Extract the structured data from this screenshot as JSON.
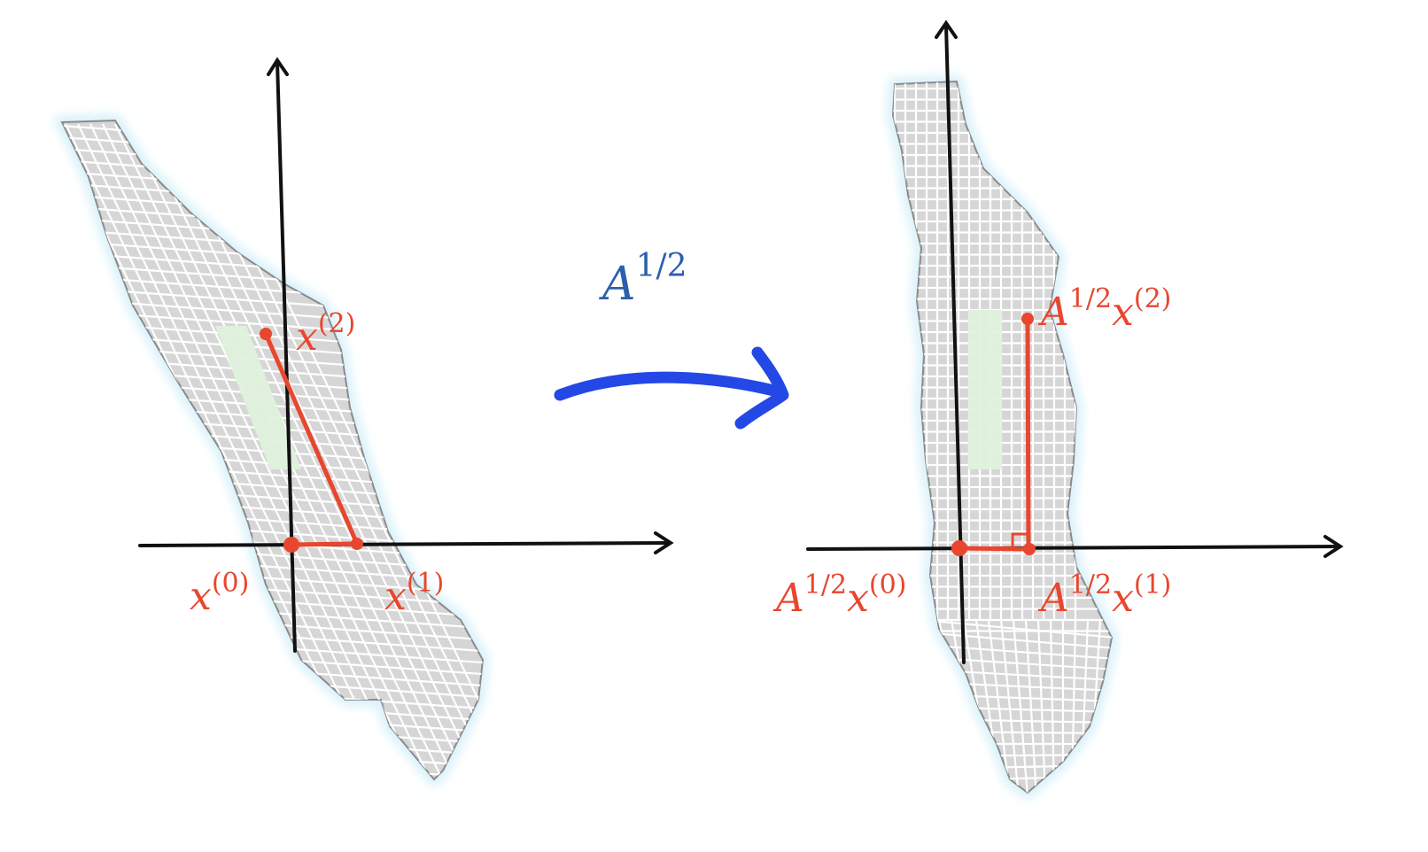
{
  "colors": {
    "path": "#e8462e",
    "arrow": "#2448e6",
    "transform_label": "#2a5fae",
    "land": "#d6d6d6",
    "land_outline": "#8a8a8a",
    "water_glow": "#cfeefa",
    "park": "#dff2dc",
    "axes": "#111111"
  },
  "transform": {
    "base": "A",
    "exponent": "1/2"
  },
  "left_panel": {
    "points": [
      {
        "base": "x",
        "index": "(0)"
      },
      {
        "base": "x",
        "index": "(1)"
      },
      {
        "base": "x",
        "index": "(2)"
      }
    ]
  },
  "right_panel": {
    "points": [
      {
        "prefix": "A",
        "prefix_exp": "1/2",
        "base": "x",
        "index": "(0)"
      },
      {
        "prefix": "A",
        "prefix_exp": "1/2",
        "base": "x",
        "index": "(1)"
      },
      {
        "prefix": "A",
        "prefix_exp": "1/2",
        "base": "x",
        "index": "(2)"
      }
    ]
  }
}
